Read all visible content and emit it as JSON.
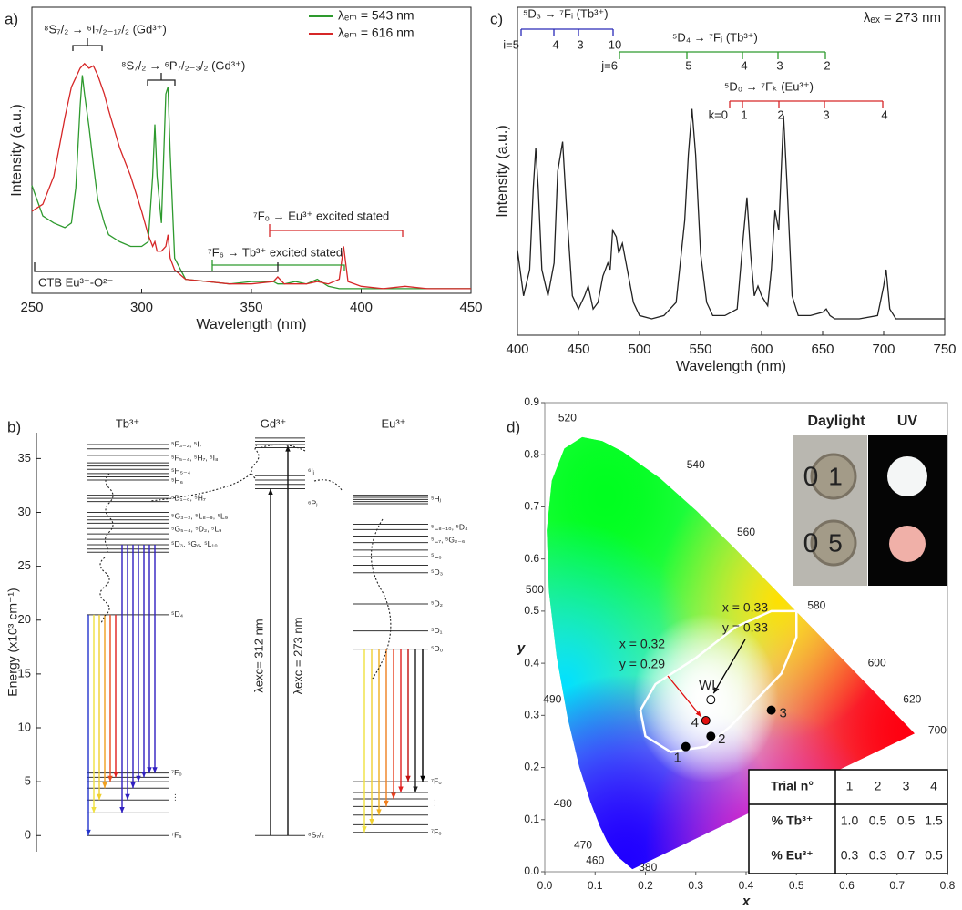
{
  "chart_data": [
    {
      "type": "line",
      "label": "a)",
      "xlabel": "Wavelength (nm)",
      "ylabel": "Intensity (a.u.)",
      "x": [
        250,
        255,
        260,
        265,
        268,
        270,
        272,
        273,
        274,
        276,
        278,
        280,
        283,
        285,
        290,
        295,
        300,
        303,
        305,
        306,
        307,
        309,
        311,
        312,
        313,
        315,
        320,
        330,
        340,
        350,
        360,
        362,
        365,
        370,
        375,
        380,
        385,
        390,
        392,
        394,
        400,
        410,
        420,
        430,
        440,
        450
      ],
      "xlim": [
        250,
        450
      ],
      "xticks": [
        250,
        300,
        350,
        400,
        450
      ],
      "ylim": [
        0,
        1.22
      ],
      "legend": "upper right",
      "series": [
        {
          "name": "λₑₘ = 543 nm",
          "color": "#2e9a2e",
          "values": [
            0.46,
            0.33,
            0.3,
            0.28,
            0.3,
            0.45,
            0.8,
            0.93,
            0.85,
            0.71,
            0.55,
            0.4,
            0.3,
            0.25,
            0.22,
            0.2,
            0.2,
            0.22,
            0.5,
            0.72,
            0.5,
            0.3,
            0.85,
            0.88,
            0.6,
            0.15,
            0.06,
            0.05,
            0.04,
            0.05,
            0.05,
            0.04,
            0.04,
            0.05,
            0.04,
            0.06,
            0.03,
            0.02,
            0.02,
            0.02,
            0.02,
            0.02,
            0.02,
            0.02,
            0.02,
            0.02
          ]
        },
        {
          "name": "λₑₘ = 616 nm",
          "color": "#d62728",
          "values": [
            0.35,
            0.38,
            0.5,
            0.75,
            0.88,
            0.92,
            0.96,
            0.97,
            0.98,
            0.96,
            0.97,
            0.93,
            0.85,
            0.78,
            0.62,
            0.5,
            0.35,
            0.25,
            0.2,
            0.22,
            0.18,
            0.18,
            0.2,
            0.25,
            0.15,
            0.1,
            0.06,
            0.05,
            0.04,
            0.04,
            0.05,
            0.07,
            0.04,
            0.04,
            0.04,
            0.05,
            0.04,
            0.06,
            0.2,
            0.05,
            0.03,
            0.02,
            0.03,
            0.02,
            0.02,
            0.02
          ]
        }
      ],
      "annotations": [
        {
          "text": "⁸S₇/₂ → ⁶I₇/₂₋₁₇/₂ (Gd³⁺)",
          "color": "#222"
        },
        {
          "text": "⁸S₇/₂ → ⁶P₇/₂₋₃/₂ (Gd³⁺)",
          "color": "#222"
        },
        {
          "text": "⁷F₀ → Eu³⁺ excited stated",
          "color": "#d62728"
        },
        {
          "text": "⁷F₆ → Tb³⁺ excited stated",
          "color": "#2e9a2e"
        },
        {
          "text": "CTB Eu³⁺-O²⁻",
          "color": "#222"
        }
      ]
    },
    {
      "type": "energy-levels",
      "label": "b)",
      "ylabel": "Energy (x10³ cm⁻¹)",
      "ylim": [
        -1.5,
        37.4
      ],
      "yticks": [
        0,
        5,
        10,
        15,
        20,
        25,
        30,
        35
      ],
      "ions": [
        {
          "name": "Tb³⁺",
          "levels": [
            0,
            2.1,
            3.3,
            4.4,
            5.0,
            5.4,
            5.8,
            20.5,
            26.3,
            26.6,
            27.0,
            27.5,
            28.0,
            28.5,
            29.0,
            29.3,
            29.6,
            30.0,
            31.0,
            31.3,
            31.6,
            33.0,
            33.3,
            33.6,
            34.0,
            34.3,
            34.6,
            35.3,
            35.9,
            36.3
          ],
          "level_labels": [
            {
              "value": 36.3,
              "label": "⁵F₃₋₂, ⁵I₇"
            },
            {
              "value": 35.0,
              "label": "⁵F₅₋₄, ⁵H₇, ⁵I₈"
            },
            {
              "value": 33.8,
              "label": "⁵H₅₋₄"
            },
            {
              "value": 32.9,
              "label": "⁵H₆"
            },
            {
              "value": 31.3,
              "label": "⁵D₁₋₀, ⁵H₇"
            },
            {
              "value": 29.6,
              "label": "⁵G₃₋₂, ⁵L₈₋₉, ⁵L₉"
            },
            {
              "value": 28.4,
              "label": "⁵G₅₋₄, ⁵D₂, ⁵L₉"
            },
            {
              "value": 27.0,
              "label": "⁵D₃, ⁵G₆, ⁵L₁₀"
            },
            {
              "value": 20.5,
              "label": "⁵D₄"
            },
            {
              "value": 5.8,
              "label": "⁷F₀"
            },
            {
              "value": 3.5,
              "label": "⋮"
            },
            {
              "value": 0,
              "label": "⁷F₆"
            }
          ]
        },
        {
          "name": "Gd³⁺",
          "levels": [
            0,
            32.2,
            32.6,
            33.0,
            33.4,
            36.0,
            36.3,
            36.6,
            36.9
          ],
          "level_labels": [
            {
              "value": 33.8,
              "label": "⁶Iⱼ"
            },
            {
              "value": 30.8,
              "label": "⁶Pⱼ"
            },
            {
              "value": 0,
              "label": "⁸S₇/₂"
            }
          ]
        },
        {
          "name": "Eu³⁺",
          "levels": [
            0.3,
            1.0,
            1.9,
            2.7,
            3.4,
            4.0,
            5.0,
            17.3,
            19.0,
            21.5,
            24.4,
            25.1,
            25.9,
            26.5,
            27.2,
            27.8,
            28.4,
            28.9,
            30.8,
            31.0,
            31.2,
            31.4,
            31.6
          ],
          "level_labels": [
            {
              "value": 31.2,
              "label": "⁵Hⱼ"
            },
            {
              "value": 28.6,
              "label": "⁵L₈₋₁₀, ⁵D₄"
            },
            {
              "value": 27.4,
              "label": "⁵L₇, ⁵G₂₋₆"
            },
            {
              "value": 25.9,
              "label": "⁵L₆"
            },
            {
              "value": 24.4,
              "label": "⁵D₃"
            },
            {
              "value": 21.5,
              "label": "⁵D₂"
            },
            {
              "value": 19.0,
              "label": "⁵D₁"
            },
            {
              "value": 17.3,
              "label": "⁵D₀"
            },
            {
              "value": 5.0,
              "label": "⁷F₀"
            },
            {
              "value": 3.0,
              "label": "⋮"
            },
            {
              "value": 0.3,
              "label": "⁷F₆"
            }
          ]
        }
      ],
      "excitations": [
        {
          "label": "λexc= 312 nm",
          "value": 32.2
        },
        {
          "label": "λexc = 273 nm",
          "value": 36.2
        }
      ]
    },
    {
      "type": "line",
      "label": "c)",
      "xlabel": "Wavelength (nm)",
      "ylabel": "Intensity (a.u.)",
      "x": [
        400,
        405,
        410,
        413,
        415,
        417,
        420,
        425,
        430,
        433,
        437,
        440,
        445,
        450,
        455,
        458,
        462,
        466,
        470,
        474,
        476,
        478,
        481,
        483,
        486,
        490,
        495,
        500,
        510,
        520,
        530,
        537,
        540,
        543,
        546,
        550,
        555,
        560,
        570,
        580,
        585,
        588,
        591,
        594,
        597,
        600,
        605,
        608,
        611,
        614,
        618,
        621,
        625,
        630,
        640,
        650,
        653,
        656,
        660,
        680,
        695,
        700,
        702,
        705,
        710,
        730,
        750
      ],
      "xlim": [
        400,
        750
      ],
      "xticks": [
        400,
        450,
        500,
        550,
        600,
        650,
        700,
        750
      ],
      "ylim": [
        0,
        1
      ],
      "series": [
        {
          "color": "#222",
          "values": [
            0.26,
            0.12,
            0.2,
            0.45,
            0.57,
            0.45,
            0.2,
            0.12,
            0.22,
            0.5,
            0.59,
            0.4,
            0.12,
            0.08,
            0.12,
            0.15,
            0.08,
            0.1,
            0.18,
            0.22,
            0.2,
            0.32,
            0.3,
            0.25,
            0.28,
            0.2,
            0.1,
            0.06,
            0.05,
            0.06,
            0.1,
            0.35,
            0.55,
            0.69,
            0.55,
            0.25,
            0.1,
            0.06,
            0.06,
            0.08,
            0.3,
            0.42,
            0.25,
            0.12,
            0.15,
            0.12,
            0.09,
            0.2,
            0.38,
            0.32,
            0.67,
            0.45,
            0.12,
            0.06,
            0.06,
            0.07,
            0.08,
            0.06,
            0.05,
            0.05,
            0.06,
            0.15,
            0.2,
            0.08,
            0.05,
            0.05,
            0.05
          ]
        }
      ],
      "excitation": "λₑₓ = 273 nm",
      "transition_groups": [
        {
          "text": "⁵D₃ → ⁷Fᵢ (Tb³⁺)",
          "color": "#2a2ab8",
          "levels": [
            "i=5",
            "4",
            "3",
            "10"
          ]
        },
        {
          "text": "⁵D₄ → ⁷Fⱼ (Tb³⁺)",
          "color": "#2e9a2e",
          "levels": [
            "j=6",
            "5",
            "4",
            "3",
            "2"
          ]
        },
        {
          "text": "⁵D₀ → ⁷Fₖ (Eu³⁺)",
          "color": "#d62728",
          "levels": [
            "k=0",
            "1",
            "2",
            "3",
            "4"
          ]
        }
      ]
    },
    {
      "type": "scatter",
      "label": "d)",
      "xlabel": "x",
      "ylabel": "y",
      "xlim": [
        0,
        0.8
      ],
      "xticks": [
        {
          "value": 0,
          "label": "0.0"
        },
        0.1,
        0.2,
        0.3,
        0.4,
        0.5,
        0.6,
        0.7,
        0.8
      ],
      "ylim": [
        0,
        0.9
      ],
      "yticks": [
        {
          "value": 0,
          "label": "0.0"
        },
        0.1,
        0.2,
        0.3,
        0.4,
        0.5,
        0.6,
        0.7,
        0.8,
        0.9
      ],
      "x": [
        0.28,
        0.33,
        0.45,
        0.32,
        0.33
      ],
      "y": [
        0.24,
        0.26,
        0.31,
        0.29,
        0.33
      ],
      "point_labels": [
        "1",
        "2",
        "3",
        "4",
        "WL"
      ],
      "point_colors": [
        "#000",
        "#000",
        "#000",
        "#e01010",
        "#fff"
      ],
      "wavelength_labels": [
        380,
        460,
        470,
        480,
        490,
        500,
        520,
        540,
        560,
        580,
        600,
        620,
        700
      ],
      "annotations": [
        {
          "text": "x = 0.33",
          "color": "#000"
        },
        {
          "text": "y = 0.33",
          "color": "#000"
        },
        {
          "text": "x = 0.32",
          "color": "#e01010"
        },
        {
          "text": "y = 0.29",
          "color": "#e01010"
        }
      ],
      "inset": {
        "headers": [
          "Daylight",
          "UV"
        ],
        "sample_labels": [
          [
            "0",
            "1"
          ],
          [
            "0",
            "5"
          ]
        ]
      },
      "table": {
        "rows": [
          [
            "Trial n°",
            "1",
            "2",
            "3",
            "4"
          ],
          [
            "% Tb³⁺",
            "1.0",
            "0.5",
            "0.5",
            "1.5"
          ],
          [
            "% Eu³⁺",
            "0.3",
            "0.3",
            "0.7",
            "0.5"
          ]
        ]
      }
    }
  ]
}
